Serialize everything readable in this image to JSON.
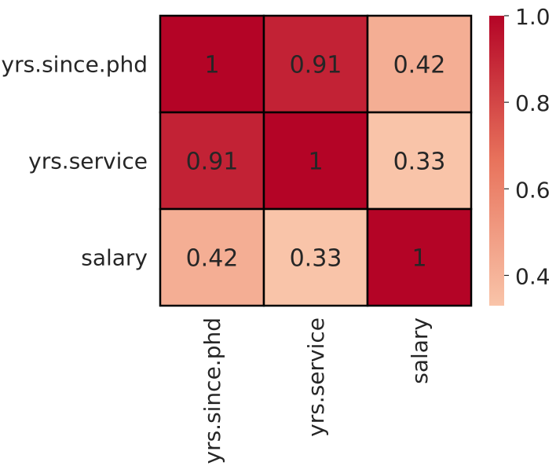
{
  "chart_data": {
    "type": "heatmap",
    "title": "",
    "xlabel": "",
    "ylabel": "",
    "x_categories": [
      "yrs.since.phd",
      "yrs.service",
      "salary"
    ],
    "y_categories": [
      "yrs.since.phd",
      "yrs.service",
      "salary"
    ],
    "values": [
      [
        1.0,
        0.91,
        0.42
      ],
      [
        0.91,
        1.0,
        0.33
      ],
      [
        0.42,
        0.33,
        1.0
      ]
    ],
    "cell_labels": [
      [
        "1",
        "0.91",
        "0.42"
      ],
      [
        "0.91",
        "1",
        "0.33"
      ],
      [
        "0.42",
        "0.33",
        "1"
      ]
    ],
    "colormap": "Reds",
    "color_range": [
      0.33,
      1.0
    ],
    "colorbar_ticks": [
      {
        "value": 1.0,
        "label": "1.0"
      },
      {
        "value": 0.8,
        "label": "0.8"
      },
      {
        "value": 0.6,
        "label": "0.6"
      },
      {
        "value": 0.4,
        "label": "0.4"
      }
    ],
    "colors": {
      "low": "#f9c4a9",
      "mid": "#e8735c",
      "high": "#b40426",
      "cell_border": "#000000",
      "text": "#262626"
    },
    "grid": false,
    "legend": "colorbar-right"
  }
}
